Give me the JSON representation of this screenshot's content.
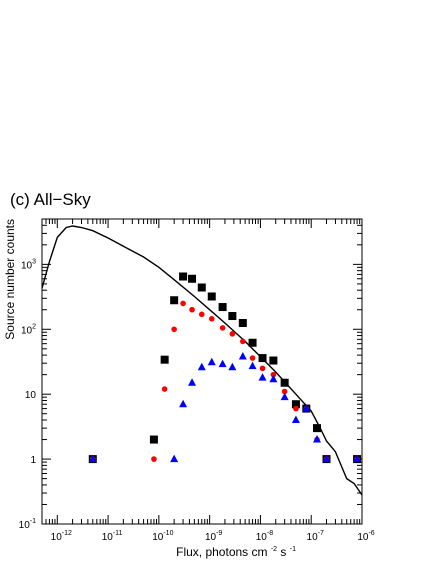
{
  "chart_data": {
    "type": "scatter",
    "title": "(c) All−Sky",
    "xlabel": {
      "base": "Flux, photons   cm",
      "exp1": "-2",
      "mid": "  s",
      "exp2": "-1"
    },
    "ylabel": "Source number counts",
    "x_scale": "log",
    "y_scale": "log",
    "xlim": [
      5e-13,
      1e-06
    ],
    "ylim": [
      0.1,
      5000
    ],
    "x_tick_labels": [
      {
        "value": 1e-12,
        "base": "10",
        "exp": "-12"
      },
      {
        "value": 1e-11,
        "base": "10",
        "exp": "-11"
      },
      {
        "value": 1e-10,
        "base": "10",
        "exp": "-10"
      },
      {
        "value": 1e-09,
        "base": "10",
        "exp": "-9"
      },
      {
        "value": 1e-08,
        "base": "10",
        "exp": "-8"
      },
      {
        "value": 1e-07,
        "base": "10",
        "exp": "-7"
      },
      {
        "value": 1e-06,
        "base": "10",
        "exp": "-6"
      }
    ],
    "y_tick_labels": [
      {
        "value": 0.1,
        "base": "10",
        "exp": "-1"
      },
      {
        "value": 1,
        "base": "1",
        "exp": ""
      },
      {
        "value": 10,
        "base": "10",
        "exp": ""
      },
      {
        "value": 100,
        "base": "10",
        "exp": "2"
      },
      {
        "value": 1000,
        "base": "10",
        "exp": "3"
      }
    ],
    "series": [
      {
        "marker": "square",
        "color": "#000000",
        "points": [
          [
            5e-12,
            1
          ],
          [
            8e-11,
            2
          ],
          [
            1.3e-10,
            34
          ],
          [
            2e-10,
            280
          ],
          [
            3e-10,
            650
          ],
          [
            4.5e-10,
            600
          ],
          [
            7e-10,
            440
          ],
          [
            1.1e-09,
            320
          ],
          [
            1.8e-09,
            220
          ],
          [
            2.8e-09,
            160
          ],
          [
            4.5e-09,
            125
          ],
          [
            7e-09,
            62
          ],
          [
            1.1e-08,
            36
          ],
          [
            1.8e-08,
            33
          ],
          [
            3e-08,
            15
          ],
          [
            5e-08,
            7
          ],
          [
            8e-08,
            6
          ],
          [
            1.3e-07,
            3
          ],
          [
            2e-07,
            1
          ],
          [
            8e-07,
            1
          ]
        ]
      },
      {
        "marker": "circle",
        "color": "#ff0000",
        "points": [
          [
            5e-12,
            1
          ],
          [
            8e-11,
            1
          ],
          [
            1.3e-10,
            12
          ],
          [
            2e-10,
            100
          ],
          [
            3e-10,
            250
          ],
          [
            4.5e-10,
            200
          ],
          [
            7e-10,
            170
          ],
          [
            1.1e-09,
            145
          ],
          [
            1.8e-09,
            105
          ],
          [
            2.8e-09,
            85
          ],
          [
            4.5e-09,
            65
          ],
          [
            7e-09,
            36
          ],
          [
            1.1e-08,
            25
          ],
          [
            1.8e-08,
            20
          ],
          [
            3e-08,
            11
          ],
          [
            5e-08,
            6
          ],
          [
            8e-08,
            6
          ],
          [
            1.3e-07,
            2
          ],
          [
            2e-07,
            1
          ],
          [
            8e-07,
            1
          ]
        ]
      },
      {
        "marker": "triangle",
        "color": "#0000ff",
        "points": [
          [
            5e-12,
            1
          ],
          [
            2e-10,
            1
          ],
          [
            3e-10,
            7
          ],
          [
            4.5e-10,
            15
          ],
          [
            7e-10,
            26
          ],
          [
            1.1e-09,
            31
          ],
          [
            1.8e-09,
            29
          ],
          [
            2.8e-09,
            26
          ],
          [
            4.5e-09,
            38
          ],
          [
            7e-09,
            27
          ],
          [
            1.1e-08,
            18
          ],
          [
            1.8e-08,
            17
          ],
          [
            3e-08,
            9
          ],
          [
            5e-08,
            4
          ],
          [
            8e-08,
            6
          ],
          [
            1.3e-07,
            2
          ],
          [
            2e-07,
            1
          ],
          [
            8e-07,
            1
          ]
        ]
      }
    ],
    "curve": {
      "color": "#000000",
      "points": [
        [
          5e-13,
          430
        ],
        [
          7e-13,
          1100
        ],
        [
          1e-12,
          2600
        ],
        [
          1.5e-12,
          3700
        ],
        [
          2e-12,
          3900
        ],
        [
          3e-12,
          3700
        ],
        [
          5e-12,
          3300
        ],
        [
          1e-11,
          2550
        ],
        [
          2e-11,
          1900
        ],
        [
          5e-11,
          1300
        ],
        [
          1e-10,
          900
        ],
        [
          2e-10,
          580
        ],
        [
          5e-10,
          320
        ],
        [
          1e-09,
          200
        ],
        [
          2e-09,
          125
        ],
        [
          5e-09,
          65
        ],
        [
          1e-08,
          38
        ],
        [
          2e-08,
          22
        ],
        [
          5e-08,
          10
        ],
        [
          1e-07,
          5.5
        ],
        [
          1.5e-07,
          3
        ],
        [
          2e-07,
          1.9
        ],
        [
          3e-07,
          1.3
        ],
        [
          5e-07,
          0.5
        ],
        [
          7e-07,
          0.42
        ],
        [
          1e-06,
          0.28
        ]
      ]
    }
  }
}
